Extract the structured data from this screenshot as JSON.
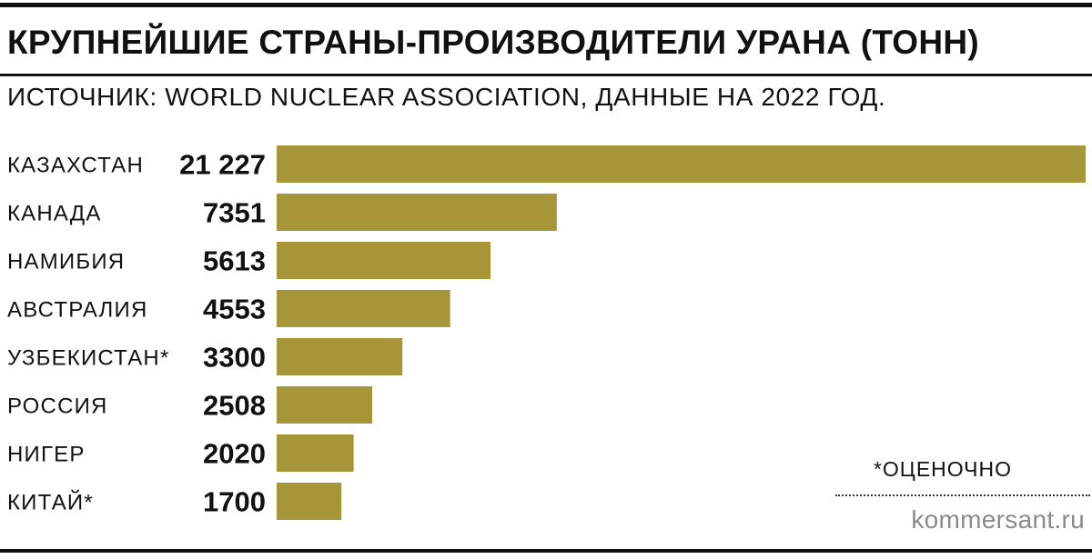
{
  "header": {
    "title": "КРУПНЕЙШИЕ СТРАНЫ-ПРОИЗВОДИТЕЛИ УРАНА (ТОНН)",
    "subtitle": "ИСТОЧНИК: WORLD NUCLEAR ASSOCIATION, ДАННЫЕ НА 2022 ГОД."
  },
  "footer": {
    "note": "*ОЦЕНОЧНО",
    "brand": "kommersant.ru"
  },
  "colors": {
    "bar": "#a7953a",
    "text": "#111111",
    "brand": "#8a8a8a"
  },
  "chart_data": {
    "type": "bar",
    "orientation": "horizontal",
    "title": "КРУПНЕЙШИЕ СТРАНЫ-ПРОИЗВОДИТЕЛИ УРАНА (ТОНН)",
    "subtitle": "ИСТОЧНИК: WORLD NUCLEAR ASSOCIATION, ДАННЫЕ НА 2022 ГОД.",
    "categories": [
      "КАЗАХСТАН",
      "КАНАДА",
      "НАМИБИЯ",
      "АВСТРАЛИЯ",
      "УЗБЕКИСТАН*",
      "РОССИЯ",
      "НИГЕР",
      "КИТАЙ*"
    ],
    "values": [
      21227,
      7351,
      5613,
      4553,
      3300,
      2508,
      2020,
      1700
    ],
    "value_labels": [
      "21 227",
      "7351",
      "5613",
      "4553",
      "3300",
      "2508",
      "2020",
      "1700"
    ],
    "xlim": [
      0,
      21227
    ],
    "grid": false,
    "legend": "none",
    "note": "*ОЦЕНОЧНО"
  }
}
